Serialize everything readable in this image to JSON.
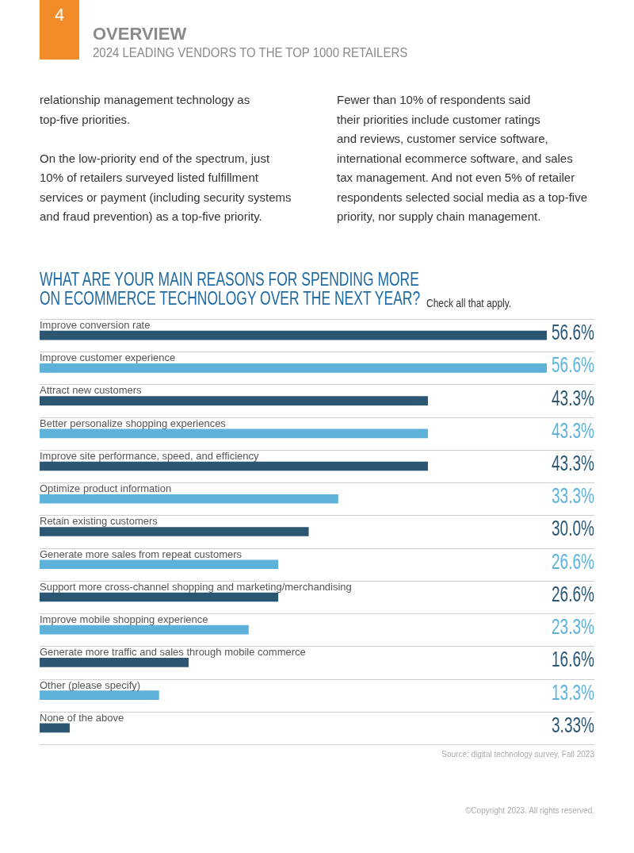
{
  "chart_data": {
    "type": "bar",
    "orientation": "horizontal",
    "title": "WHAT ARE YOUR MAIN REASONS FOR SPENDING MORE ON ECOMMERCE TECHNOLOGY OVER THE NEXT YEAR?",
    "subtitle": "Check all that apply.",
    "categories": [
      "Improve conversion rate",
      "Improve customer experience",
      "Attract new customers",
      "Better personalize shopping experiences",
      "Improve site performance, speed, and efficiency",
      "Optimize product information",
      "Retain existing customers",
      "Generate more sales from repeat customers",
      "Support more cross-channel shopping and marketing/merchandising",
      "Improve mobile shopping experience",
      "Generate more traffic and sales through mobile commerce",
      "Other (please specify)",
      "None of the above"
    ],
    "values": [
      56.6,
      56.6,
      43.3,
      43.3,
      43.3,
      33.3,
      30.0,
      26.6,
      26.6,
      23.3,
      16.6,
      13.3,
      3.33
    ],
    "value_labels": [
      "56.6%",
      "56.6%",
      "43.3%",
      "43.3%",
      "43.3%",
      "33.3%",
      "30.0%",
      "26.6%",
      "26.6%",
      "23.3%",
      "16.6%",
      "13.3%",
      "3.33%"
    ],
    "colors": [
      "#2b5773",
      "#5eb1d9",
      "#2b5773",
      "#5eb1d9",
      "#2b5773",
      "#5eb1d9",
      "#2b5773",
      "#5eb1d9",
      "#2b5773",
      "#5eb1d9",
      "#2b5773",
      "#5eb1d9",
      "#2b5773"
    ],
    "grid": "y",
    "legend": false,
    "annotations": [
      "4",
      "OVERVIEW",
      "2024 LEADING VENDORS TO THE TOP 1000 RETAILERS",
      "relationship management technology as\ntop-five priorities.\n\nOn the low-priority end of the spectrum, just\n10% of retailers surveyed listed fulfillment\nservices or payment (including security systems\nand fraud prevention) as a top-five priority.",
      "Fewer than 10% of respondents said\ntheir priorities include customer ratings\nand reviews, customer service software,\ninternational ecommerce software, and sales\ntax management. And not even 5% of retailer\nrespondents selected social media as a top-five\npriority, nor supply chain management.",
      "Source: digital technology survey, Fall 2023",
      "©Copyright 2023. All rights reserved."
    ]
  }
}
